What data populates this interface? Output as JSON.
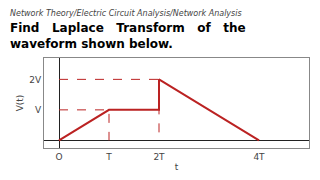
{
  "chart_data": {
    "type": "line",
    "subtitle": "Network Theory/Electric Circuit Analysis/Network Analysis",
    "title": "Find   Laplace   Transform   of   the\nwaveform shown below.",
    "xlabel": "t",
    "ylabel": "V(t)",
    "series": [
      {
        "x": [
          0,
          1,
          2,
          2,
          4
        ],
        "values": [
          0,
          1,
          1,
          2,
          0
        ],
        "color": "#BB2222",
        "line_style": "solid"
      },
      {
        "x": [
          0,
          1,
          1
        ],
        "values": [
          1,
          1,
          0
        ],
        "color": "#BB2222",
        "line_style": "dashed"
      },
      {
        "x": [
          0,
          2,
          2
        ],
        "values": [
          2,
          2,
          0
        ],
        "color": "#BB2222",
        "line_style": "dashed"
      }
    ],
    "xlim": [
      -0.3,
      5.0
    ],
    "ylim": [
      -0.25,
      2.7
    ],
    "xticks": [
      {
        "value": 0,
        "label": "O"
      },
      {
        "value": 1,
        "label": "T"
      },
      {
        "value": 2,
        "label": "2T"
      },
      {
        "value": 4,
        "label": "4T"
      }
    ],
    "yticks": [
      {
        "value": 1,
        "label": "V"
      },
      {
        "value": 2,
        "label": "2V"
      }
    ],
    "grid": false
  }
}
